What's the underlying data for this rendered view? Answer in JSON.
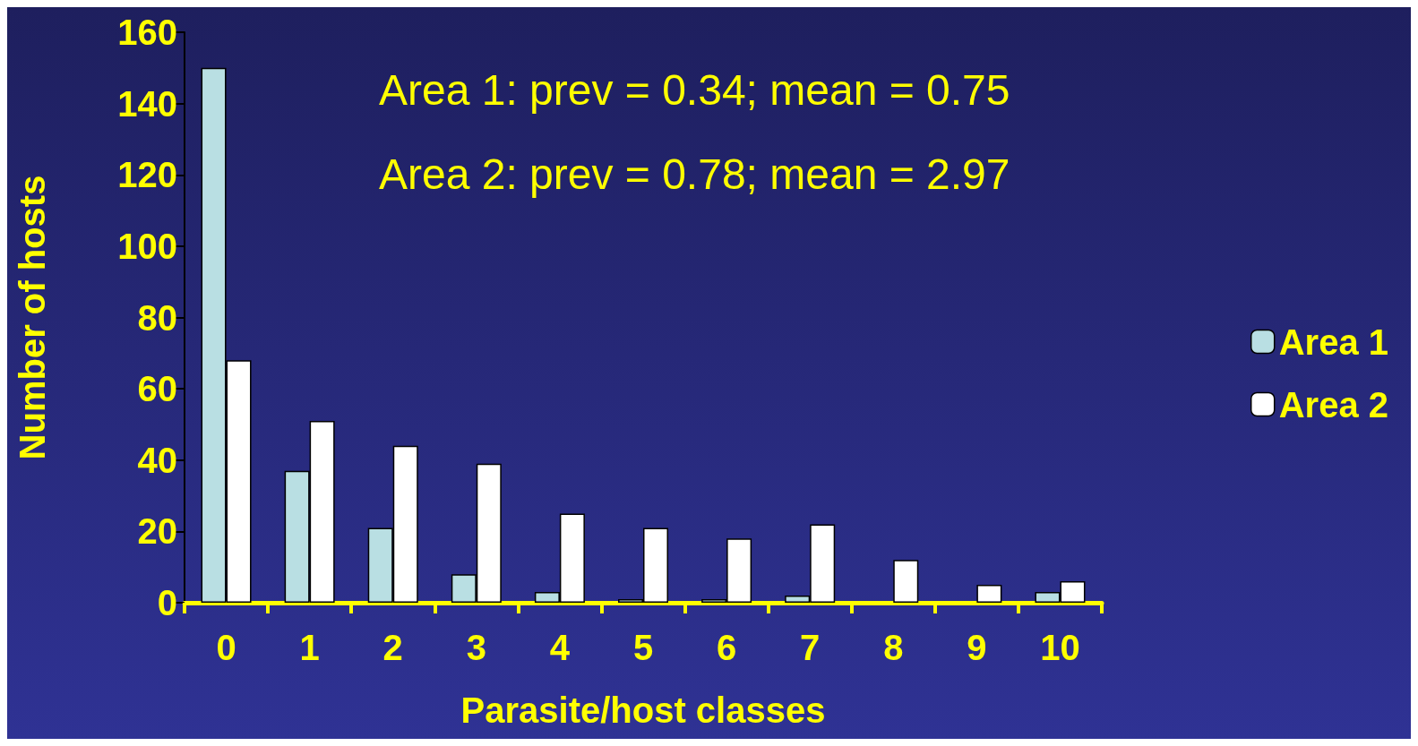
{
  "chart_data": {
    "type": "bar",
    "xlabel": "Parasite/host classes",
    "ylabel": "Number of hosts",
    "categories": [
      "0",
      "1",
      "2",
      "3",
      "4",
      "5",
      "6",
      "7",
      "8",
      "9",
      "10"
    ],
    "series": [
      {
        "name": "Area 1",
        "color": "#b9dfe3",
        "values": [
          150,
          37,
          21,
          8,
          3,
          1,
          1,
          2,
          0,
          0,
          3
        ]
      },
      {
        "name": "Area 2",
        "color": "#ffffff",
        "values": [
          68,
          51,
          44,
          39,
          25,
          21,
          18,
          22,
          12,
          5,
          6
        ]
      }
    ],
    "ylim": [
      0,
      160
    ],
    "yticks": [
      0,
      20,
      40,
      60,
      80,
      100,
      120,
      140,
      160
    ],
    "grid": false,
    "legend": "right",
    "annotations": [
      "Area 1: prev = 0.34; mean = 0.75",
      "Area 2: prev = 0.78; mean = 2.97"
    ]
  }
}
